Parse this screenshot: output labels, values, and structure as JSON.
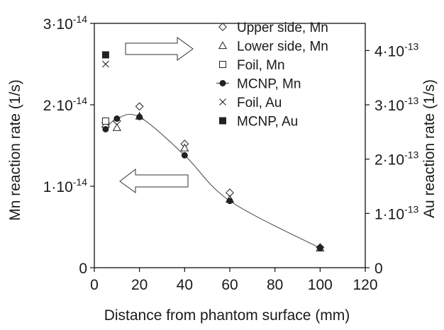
{
  "chart_data": {
    "type": "scatter",
    "xlabel": "Distance from phantom surface (mm)",
    "ylabel_left": "Mn reaction rate (1/s)",
    "ylabel_right": "Au reaction rate (1/s)",
    "xlim": [
      0,
      120
    ],
    "ylim_left": [
      0,
      3e-14
    ],
    "ylim_right": [
      0,
      4.5e-13
    ],
    "x_ticks": [
      "0",
      "20",
      "40",
      "60",
      "80",
      "100",
      "120"
    ],
    "left_ticks": [
      {
        "mant": "0",
        "exp": ""
      },
      {
        "mant": "1·10",
        "exp": "-14"
      },
      {
        "mant": "2·10",
        "exp": "-14"
      },
      {
        "mant": "3·10",
        "exp": "-14"
      }
    ],
    "right_ticks": [
      {
        "mant": "0",
        "exp": ""
      },
      {
        "mant": "1·10",
        "exp": "-13"
      },
      {
        "mant": "2·10",
        "exp": "-13"
      },
      {
        "mant": "3·10",
        "exp": "-13"
      },
      {
        "mant": "4·10",
        "exp": "-13"
      }
    ],
    "grid": false,
    "legend_position": "top-right",
    "series": [
      {
        "name": "Upper side, Mn",
        "marker": "diamond",
        "axis": "left",
        "points": [
          [
            5,
            1.78e-14
          ],
          [
            10,
            1.8e-14
          ],
          [
            20,
            1.98e-14
          ],
          [
            40,
            1.52e-14
          ],
          [
            60,
            9.2e-15
          ],
          [
            100,
            2.5e-15
          ]
        ]
      },
      {
        "name": "Lower side, Mn",
        "marker": "triangle",
        "axis": "left",
        "points": [
          [
            5,
            1.76e-14
          ],
          [
            10,
            1.72e-14
          ],
          [
            20,
            1.86e-14
          ],
          [
            40,
            1.47e-14
          ],
          [
            60,
            8.4e-15
          ],
          [
            100,
            2.4e-15
          ]
        ]
      },
      {
        "name": "Foil, Mn",
        "marker": "square-open",
        "axis": "left",
        "points": [
          [
            5,
            1.8e-14
          ]
        ]
      },
      {
        "name": "MCNP, Mn",
        "marker": "circle-line",
        "axis": "left",
        "points": [
          [
            5,
            1.7e-14
          ],
          [
            10,
            1.83e-14
          ],
          [
            20,
            1.85e-14
          ],
          [
            40,
            1.38e-14
          ],
          [
            60,
            8.2e-15
          ],
          [
            100,
            2.4e-15
          ]
        ]
      },
      {
        "name": "Foil, Au",
        "marker": "x",
        "axis": "right",
        "points": [
          [
            5,
            3.75e-13
          ]
        ]
      },
      {
        "name": "MCNP, Au",
        "marker": "square-filled",
        "axis": "right",
        "points": [
          [
            5,
            3.92e-13
          ]
        ]
      }
    ],
    "annotations": [
      {
        "type": "arrow-right"
      },
      {
        "type": "arrow-left"
      }
    ]
  },
  "colors": {
    "marker": "#222222",
    "line": "#555555",
    "axis": "#111111"
  }
}
